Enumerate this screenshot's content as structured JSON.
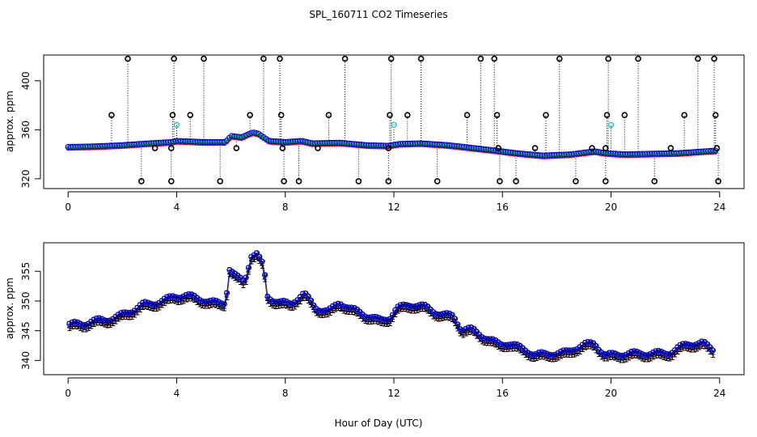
{
  "chart_data": {
    "type": "scatter",
    "title": "SPL_160711  CO2 Timeseries",
    "xlabel": "Hour of Day (UTC)",
    "panels": [
      {
        "id": "top",
        "ylabel": "approx. ppm",
        "xlim": [
          -0.9,
          24.9
        ],
        "ylim": [
          312,
          421
        ],
        "x_ticks": [
          0,
          4,
          8,
          12,
          16,
          20,
          24
        ],
        "y_ticks": [
          320,
          360,
          400
        ],
        "baseline": [
          [
            0.0,
            346
          ],
          [
            1.0,
            346.5
          ],
          [
            2.0,
            347.5
          ],
          [
            3.0,
            349
          ],
          [
            3.8,
            350
          ],
          [
            4.0,
            351
          ],
          [
            5.0,
            350
          ],
          [
            5.8,
            350
          ],
          [
            6.0,
            355
          ],
          [
            6.4,
            354
          ],
          [
            6.8,
            358
          ],
          [
            7.0,
            357
          ],
          [
            7.4,
            351
          ],
          [
            8.0,
            350
          ],
          [
            8.6,
            351
          ],
          [
            9.0,
            349
          ],
          [
            10.0,
            349.5
          ],
          [
            11.0,
            347.5
          ],
          [
            11.8,
            347
          ],
          [
            12.2,
            348.5
          ],
          [
            13.0,
            349
          ],
          [
            14.0,
            347.5
          ],
          [
            15.0,
            345
          ],
          [
            15.8,
            343
          ],
          [
            16.5,
            341
          ],
          [
            17.5,
            339
          ],
          [
            18.5,
            340
          ],
          [
            19.4,
            342.5
          ],
          [
            19.8,
            341
          ],
          [
            20.5,
            340
          ],
          [
            21.5,
            340.5
          ],
          [
            22.5,
            341
          ],
          [
            23.8,
            343
          ]
        ],
        "outliers": [
          {
            "x": 1.6,
            "y": 372,
            "color": "#000000"
          },
          {
            "x": 2.2,
            "y": 418,
            "color": "#000000"
          },
          {
            "x": 2.7,
            "y": 318,
            "color": "#000000"
          },
          {
            "x": 3.2,
            "y": 345,
            "color": "#000000"
          },
          {
            "x": 3.8,
            "y": 318,
            "color": "#000000"
          },
          {
            "x": 3.85,
            "y": 372,
            "color": "#000000"
          },
          {
            "x": 3.9,
            "y": 418,
            "color": "#000000"
          },
          {
            "x": 3.8,
            "y": 345,
            "color": "#000000"
          },
          {
            "x": 4.0,
            "y": 364,
            "color": "#33cccc"
          },
          {
            "x": 4.5,
            "y": 372,
            "color": "#000000"
          },
          {
            "x": 5.0,
            "y": 418,
            "color": "#000000"
          },
          {
            "x": 5.6,
            "y": 318,
            "color": "#000000"
          },
          {
            "x": 6.2,
            "y": 345,
            "color": "#000000"
          },
          {
            "x": 6.7,
            "y": 372,
            "color": "#000000"
          },
          {
            "x": 7.2,
            "y": 418,
            "color": "#000000"
          },
          {
            "x": 7.8,
            "y": 418,
            "color": "#000000"
          },
          {
            "x": 7.85,
            "y": 372,
            "color": "#000000"
          },
          {
            "x": 7.9,
            "y": 345,
            "color": "#000000"
          },
          {
            "x": 7.95,
            "y": 318,
            "color": "#000000"
          },
          {
            "x": 8.5,
            "y": 318,
            "color": "#000000"
          },
          {
            "x": 9.2,
            "y": 345,
            "color": "#000000"
          },
          {
            "x": 9.6,
            "y": 372,
            "color": "#000000"
          },
          {
            "x": 10.2,
            "y": 418,
            "color": "#000000"
          },
          {
            "x": 10.7,
            "y": 318,
            "color": "#000000"
          },
          {
            "x": 11.8,
            "y": 318,
            "color": "#000000"
          },
          {
            "x": 11.8,
            "y": 345,
            "color": "#000000"
          },
          {
            "x": 11.85,
            "y": 372,
            "color": "#000000"
          },
          {
            "x": 11.9,
            "y": 418,
            "color": "#000000"
          },
          {
            "x": 12.0,
            "y": 364,
            "color": "#33cccc"
          },
          {
            "x": 12.5,
            "y": 372,
            "color": "#000000"
          },
          {
            "x": 13.0,
            "y": 418,
            "color": "#000000"
          },
          {
            "x": 13.6,
            "y": 318,
            "color": "#000000"
          },
          {
            "x": 14.7,
            "y": 372,
            "color": "#000000"
          },
          {
            "x": 15.2,
            "y": 418,
            "color": "#000000"
          },
          {
            "x": 15.7,
            "y": 418,
            "color": "#000000"
          },
          {
            "x": 15.8,
            "y": 372,
            "color": "#000000"
          },
          {
            "x": 15.85,
            "y": 345,
            "color": "#000000"
          },
          {
            "x": 15.9,
            "y": 318,
            "color": "#000000"
          },
          {
            "x": 16.5,
            "y": 318,
            "color": "#000000"
          },
          {
            "x": 17.2,
            "y": 345,
            "color": "#000000"
          },
          {
            "x": 17.6,
            "y": 372,
            "color": "#000000"
          },
          {
            "x": 18.1,
            "y": 418,
            "color": "#000000"
          },
          {
            "x": 18.7,
            "y": 318,
            "color": "#000000"
          },
          {
            "x": 19.3,
            "y": 345,
            "color": "#000000"
          },
          {
            "x": 19.8,
            "y": 318,
            "color": "#000000"
          },
          {
            "x": 19.85,
            "y": 372,
            "color": "#000000"
          },
          {
            "x": 19.9,
            "y": 418,
            "color": "#000000"
          },
          {
            "x": 19.8,
            "y": 345,
            "color": "#000000"
          },
          {
            "x": 20.0,
            "y": 364,
            "color": "#33cccc"
          },
          {
            "x": 20.5,
            "y": 372,
            "color": "#000000"
          },
          {
            "x": 21.0,
            "y": 418,
            "color": "#000000"
          },
          {
            "x": 21.6,
            "y": 318,
            "color": "#000000"
          },
          {
            "x": 22.2,
            "y": 345,
            "color": "#000000"
          },
          {
            "x": 22.7,
            "y": 372,
            "color": "#000000"
          },
          {
            "x": 23.2,
            "y": 418,
            "color": "#000000"
          },
          {
            "x": 23.8,
            "y": 418,
            "color": "#000000"
          },
          {
            "x": 23.85,
            "y": 372,
            "color": "#000000"
          },
          {
            "x": 23.9,
            "y": 345,
            "color": "#000000"
          },
          {
            "x": 23.95,
            "y": 318,
            "color": "#000000"
          }
        ]
      },
      {
        "id": "bottom",
        "ylabel": "approx. ppm",
        "xlim": [
          -0.9,
          24.9
        ],
        "ylim": [
          337.6,
          359.8
        ],
        "x_ticks": [
          0,
          4,
          8,
          12,
          16,
          20,
          24
        ],
        "y_ticks": [
          340,
          345,
          350,
          355
        ],
        "series": [
          {
            "name": "1",
            "color": "#dd0000"
          },
          {
            "name": "2",
            "color": "#00bb00"
          },
          {
            "name": "3",
            "color": "#0000ff"
          }
        ],
        "centers": [
          [
            0.1,
            346
          ],
          [
            0.6,
            346
          ],
          [
            1.2,
            347
          ],
          [
            1.8,
            347.5
          ],
          [
            2.4,
            348.3
          ],
          [
            2.8,
            349.3
          ],
          [
            3.3,
            350
          ],
          [
            3.9,
            351
          ],
          [
            4.6,
            350.5
          ],
          [
            5.2,
            350
          ],
          [
            5.8,
            350
          ],
          [
            5.95,
            355.5
          ],
          [
            6.2,
            354
          ],
          [
            6.5,
            353
          ],
          [
            6.75,
            357.5
          ],
          [
            6.95,
            357.8
          ],
          [
            7.2,
            356
          ],
          [
            7.35,
            351
          ],
          [
            7.8,
            350
          ],
          [
            8.2,
            349.5
          ],
          [
            8.7,
            351
          ],
          [
            9.1,
            349
          ],
          [
            9.6,
            348.5
          ],
          [
            10.0,
            350
          ],
          [
            10.4,
            348.5
          ],
          [
            11.0,
            347.5
          ],
          [
            11.5,
            347
          ],
          [
            11.85,
            347.5
          ],
          [
            12.1,
            348.8
          ],
          [
            12.6,
            349.2
          ],
          [
            13.2,
            349
          ],
          [
            13.8,
            348
          ],
          [
            14.2,
            347.5
          ],
          [
            14.5,
            345
          ],
          [
            14.9,
            345
          ],
          [
            15.4,
            344
          ],
          [
            15.9,
            343
          ],
          [
            16.2,
            343
          ],
          [
            16.6,
            342
          ],
          [
            17.2,
            341
          ],
          [
            17.8,
            341.5
          ],
          [
            18.4,
            341.3
          ],
          [
            19.0,
            342.5
          ],
          [
            19.4,
            343
          ],
          [
            19.8,
            341.2
          ],
          [
            20.4,
            341
          ],
          [
            21.0,
            341
          ],
          [
            21.6,
            341.5
          ],
          [
            22.2,
            341.5
          ],
          [
            22.8,
            342.5
          ],
          [
            23.4,
            343
          ],
          [
            23.8,
            342
          ]
        ]
      }
    ]
  }
}
